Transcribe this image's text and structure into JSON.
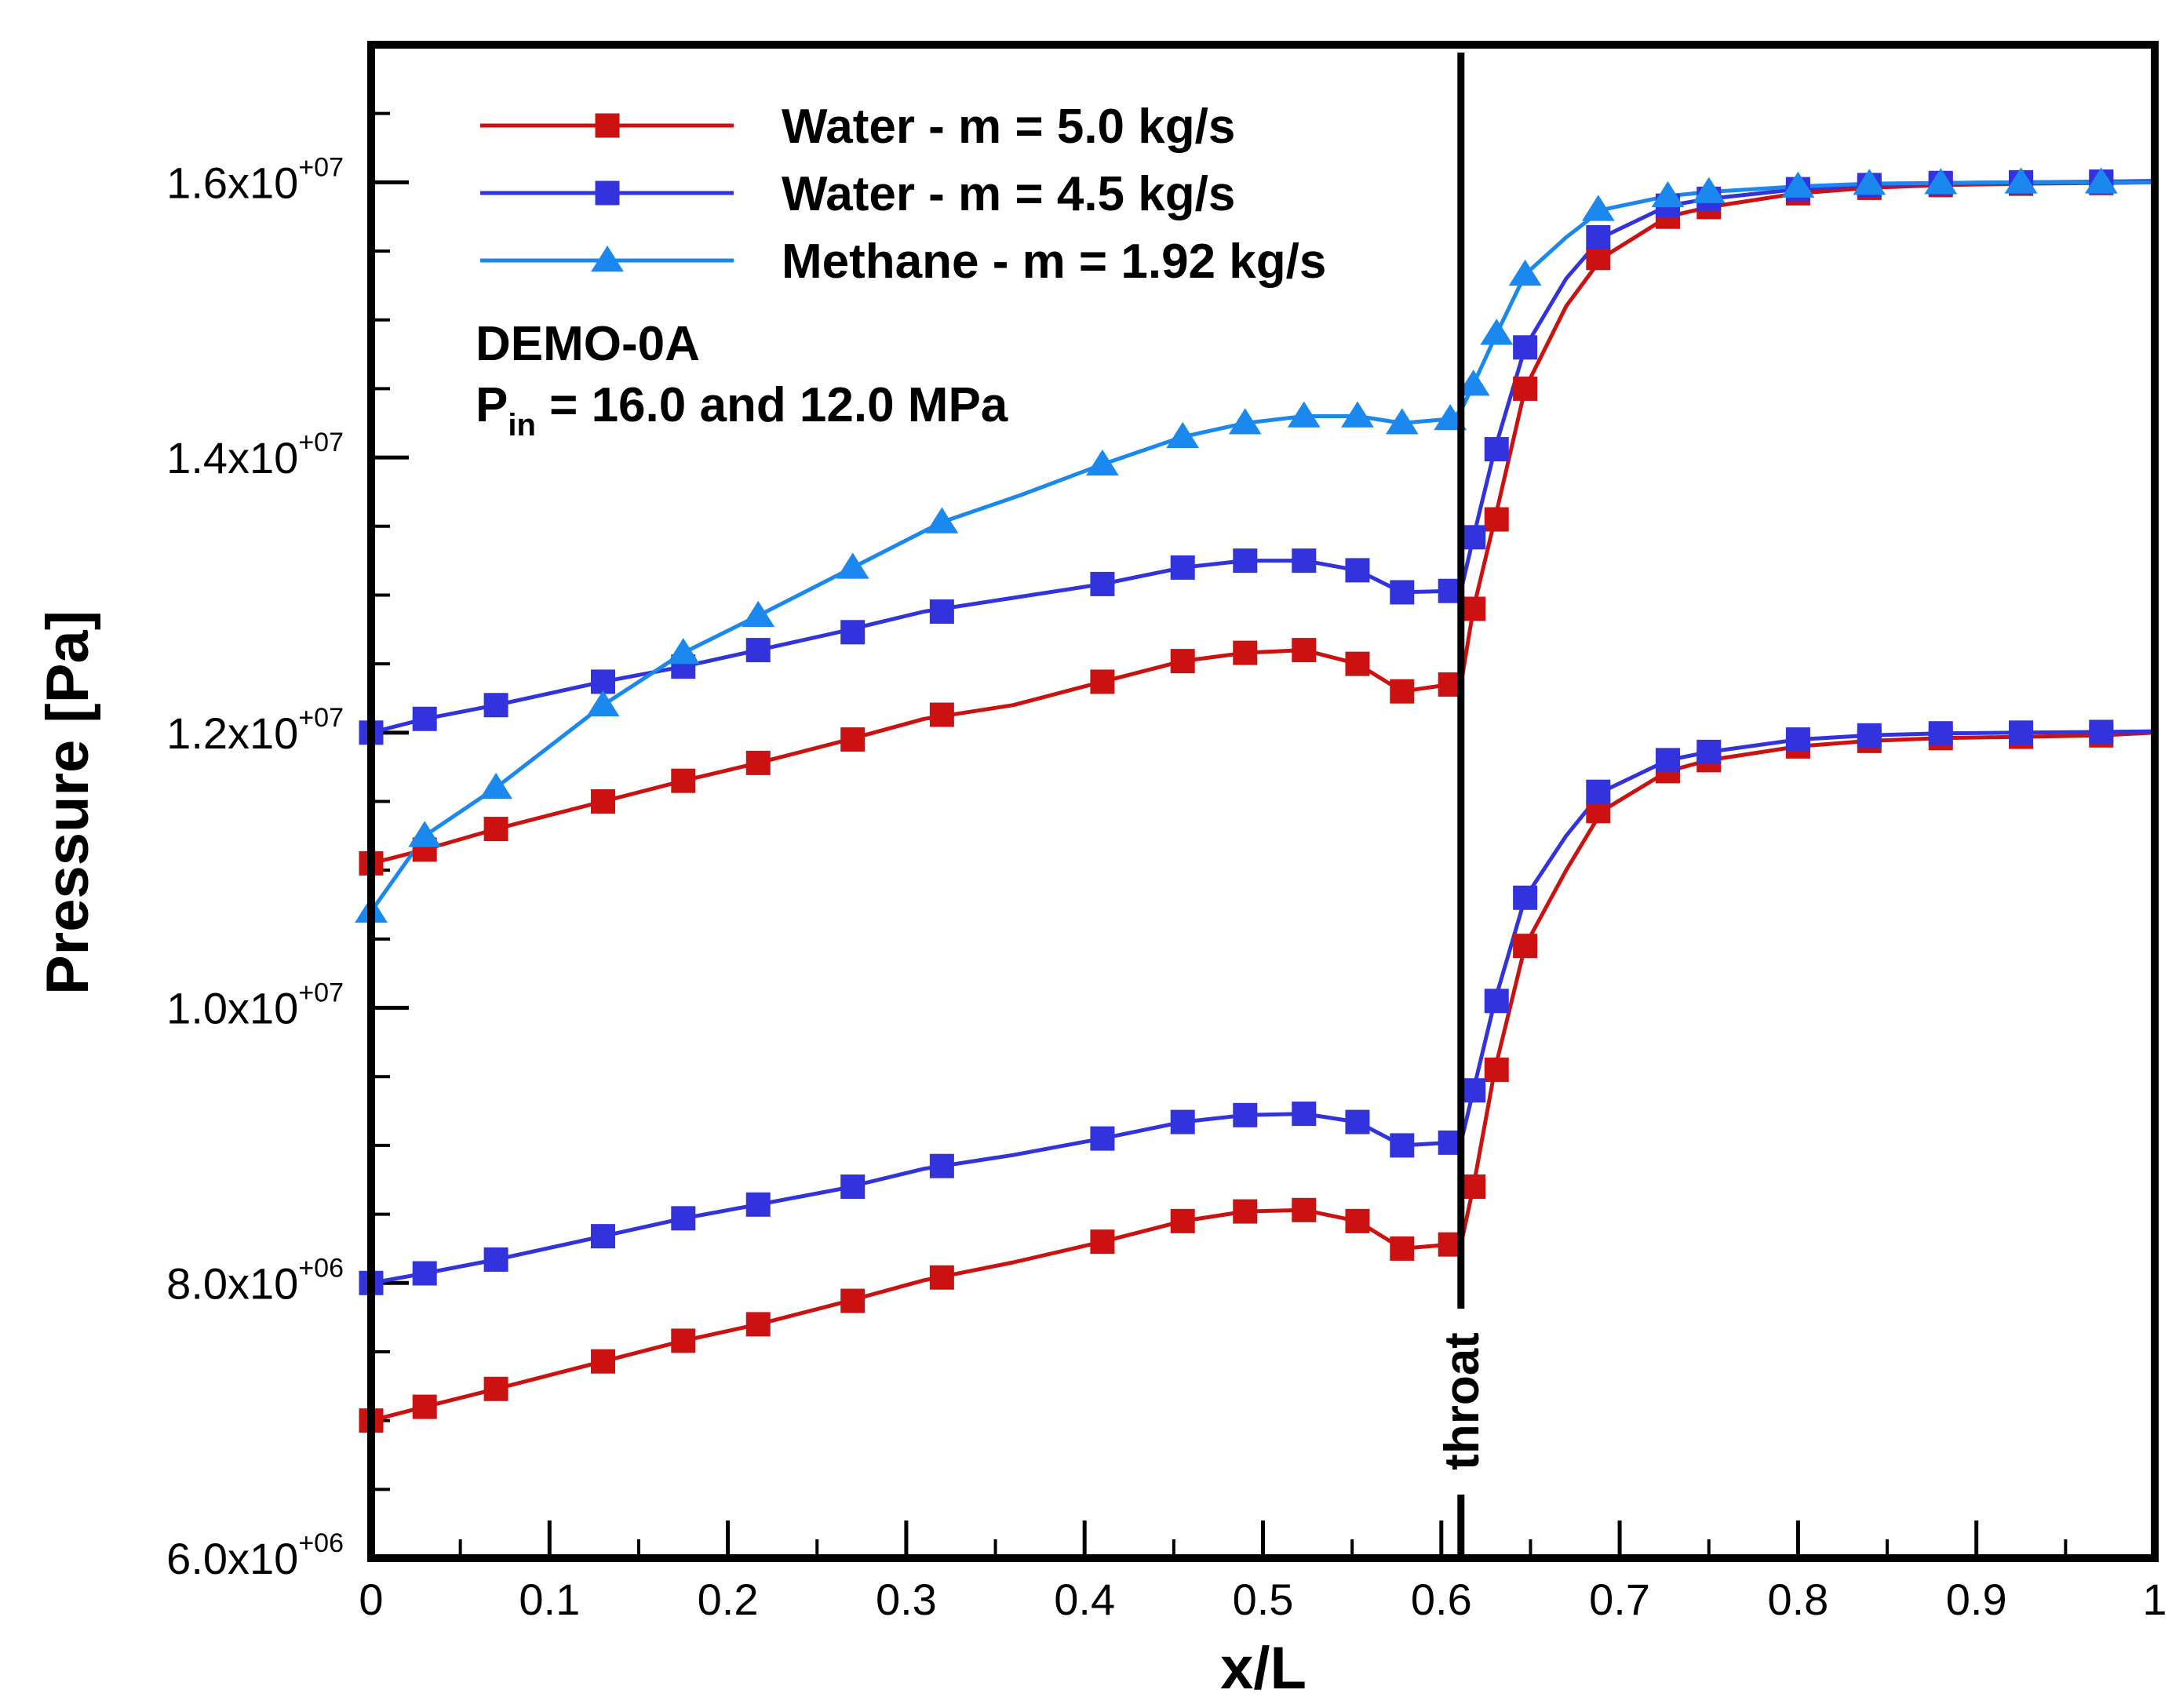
{
  "chart_data": {
    "type": "line",
    "title": "",
    "xlabel": "x/L",
    "ylabel": "Pressure [Pa]",
    "xlim": [
      0,
      1
    ],
    "ylim": [
      6000000,
      17000000
    ],
    "grid": false,
    "legend_position": "top-left",
    "x_ticks": [
      {
        "value": 0,
        "label": "0"
      },
      {
        "value": 0.1,
        "label": "0.1"
      },
      {
        "value": 0.2,
        "label": "0.2"
      },
      {
        "value": 0.3,
        "label": "0.3"
      },
      {
        "value": 0.4,
        "label": "0.4"
      },
      {
        "value": 0.5,
        "label": "0.5"
      },
      {
        "value": 0.6,
        "label": "0.6"
      },
      {
        "value": 0.7,
        "label": "0.7"
      },
      {
        "value": 0.8,
        "label": "0.8"
      },
      {
        "value": 0.9,
        "label": "0.9"
      },
      {
        "value": 1,
        "label": "1"
      }
    ],
    "y_ticks": [
      {
        "value": 6000000,
        "mantissa": "6.0x10",
        "exponent": "+06"
      },
      {
        "value": 8000000,
        "mantissa": "8.0x10",
        "exponent": "+06"
      },
      {
        "value": 10000000,
        "mantissa": "1.0x10",
        "exponent": "+07"
      },
      {
        "value": 12000000,
        "mantissa": "1.2x10",
        "exponent": "+07"
      },
      {
        "value": 14000000,
        "mantissa": "1.4x10",
        "exponent": "+07"
      },
      {
        "value": 16000000,
        "mantissa": "1.6x10",
        "exponent": "+07"
      }
    ],
    "annotations": {
      "case_name": "DEMO-0A",
      "pin_symbol": "P",
      "pin_subscript": "in",
      "pin_text": " = 16.0 and 12.0 MPa",
      "throat_label": "throat",
      "throat_x": 0.611
    },
    "series": [
      {
        "name": "Water - m = 5.0 kg/s",
        "color": "#cc1111",
        "marker": "square",
        "case": "Pin 16.0 MPa",
        "x": [
          0,
          0.03,
          0.07,
          0.13,
          0.175,
          0.217,
          0.262,
          0.31,
          0.36,
          0.41,
          0.455,
          0.49,
          0.523,
          0.553,
          0.578,
          0.605,
          0.611,
          0.618,
          0.63,
          0.647,
          0.67,
          0.69,
          0.727,
          0.75,
          0.8,
          0.84,
          0.88,
          0.925,
          0.97,
          1.0
        ],
        "y": [
          11050000,
          11150000,
          11300000,
          11500000,
          11650000,
          11780000,
          11930000,
          12100000,
          12200000,
          12370000,
          12520000,
          12580000,
          12600000,
          12500000,
          12300000,
          12350000,
          12350000,
          12900000,
          13550000,
          14500000,
          15100000,
          15450000,
          15750000,
          15820000,
          15920000,
          15960000,
          15980000,
          15990000,
          15995000,
          16000000
        ],
        "marker_x": [
          0,
          0.03,
          0.07,
          0.13,
          0.175,
          0.217,
          0.27,
          0.32,
          0.41,
          0.455,
          0.49,
          0.523,
          0.553,
          0.578,
          0.605,
          0.618,
          0.631,
          0.647,
          0.688,
          0.727,
          0.75,
          0.8,
          0.84,
          0.88,
          0.925,
          0.97
        ],
        "marker_y": [
          11050000,
          11150000,
          11300000,
          11500000,
          11650000,
          11780000,
          11950000,
          12130000,
          12370000,
          12520000,
          12580000,
          12600000,
          12500000,
          12300000,
          12350000,
          12900000,
          13550000,
          14500000,
          15450000,
          15750000,
          15820000,
          15920000,
          15960000,
          15980000,
          15990000,
          15995000
        ]
      },
      {
        "name": "Water - m = 4.5 kg/s",
        "color": "#3333dd",
        "marker": "square",
        "case": "Pin 16.0 MPa",
        "x": [
          0,
          0.03,
          0.07,
          0.13,
          0.175,
          0.217,
          0.262,
          0.31,
          0.36,
          0.41,
          0.455,
          0.49,
          0.523,
          0.553,
          0.578,
          0.605,
          0.611,
          0.618,
          0.63,
          0.647,
          0.67,
          0.69,
          0.727,
          0.75,
          0.8,
          0.84,
          0.88,
          0.925,
          0.97,
          1.0
        ],
        "y": [
          12000000,
          12100000,
          12200000,
          12370000,
          12480000,
          12600000,
          12730000,
          12880000,
          12980000,
          13080000,
          13200000,
          13250000,
          13250000,
          13180000,
          13020000,
          13030000,
          13030000,
          13420000,
          14060000,
          14800000,
          15300000,
          15600000,
          15830000,
          15880000,
          15950000,
          15980000,
          15995000,
          16000000,
          16005000,
          16010000
        ],
        "marker_x": [
          0,
          0.03,
          0.07,
          0.13,
          0.175,
          0.217,
          0.27,
          0.32,
          0.41,
          0.455,
          0.49,
          0.523,
          0.553,
          0.578,
          0.605,
          0.618,
          0.631,
          0.647,
          0.688,
          0.727,
          0.75,
          0.8,
          0.84,
          0.88,
          0.925,
          0.97
        ],
        "marker_y": [
          12000000,
          12100000,
          12200000,
          12370000,
          12480000,
          12600000,
          12730000,
          12880000,
          13080000,
          13200000,
          13250000,
          13250000,
          13180000,
          13020000,
          13030000,
          13420000,
          14060000,
          14800000,
          15600000,
          15830000,
          15880000,
          15950000,
          15980000,
          15995000,
          16000000,
          16005000
        ]
      },
      {
        "name": "Methane - m = 1.92 kg/s",
        "color": "#1a88ee",
        "marker": "triangle",
        "case": "Pin 16.0 MPa",
        "x": [
          0,
          0.03,
          0.07,
          0.1,
          0.13,
          0.175,
          0.217,
          0.27,
          0.32,
          0.365,
          0.41,
          0.455,
          0.49,
          0.523,
          0.553,
          0.578,
          0.605,
          0.611,
          0.618,
          0.631,
          0.647,
          0.67,
          0.69,
          0.727,
          0.75,
          0.8,
          0.84,
          0.88,
          0.925,
          0.97,
          1.0
        ],
        "y": [
          10700000,
          11250000,
          11600000,
          11900000,
          12200000,
          12580000,
          12850000,
          13200000,
          13530000,
          13730000,
          13950000,
          14150000,
          14250000,
          14300000,
          14300000,
          14250000,
          14280000,
          14340000,
          14530000,
          14900000,
          15330000,
          15600000,
          15800000,
          15900000,
          15930000,
          15970000,
          15990000,
          15995000,
          16000000,
          16000000,
          16000000
        ],
        "marker_x": [
          0,
          0.03,
          0.07,
          0.13,
          0.175,
          0.217,
          0.27,
          0.32,
          0.41,
          0.455,
          0.49,
          0.523,
          0.553,
          0.578,
          0.605,
          0.618,
          0.631,
          0.647,
          0.688,
          0.727,
          0.75,
          0.8,
          0.84,
          0.88,
          0.925,
          0.97
        ],
        "marker_y": [
          10700000,
          11250000,
          11600000,
          12200000,
          12580000,
          12850000,
          13200000,
          13530000,
          13950000,
          14150000,
          14250000,
          14300000,
          14300000,
          14250000,
          14280000,
          14530000,
          14900000,
          15330000,
          15800000,
          15900000,
          15930000,
          15970000,
          15990000,
          15995000,
          16000000,
          16000000
        ]
      },
      {
        "name": "Water - m = 5.0 kg/s",
        "color": "#cc1111",
        "marker": "square",
        "case": "Pin 12.0 MPa",
        "x": [
          0,
          0.03,
          0.07,
          0.13,
          0.175,
          0.217,
          0.262,
          0.31,
          0.36,
          0.41,
          0.455,
          0.49,
          0.523,
          0.553,
          0.578,
          0.605,
          0.611,
          0.618,
          0.63,
          0.647,
          0.67,
          0.69,
          0.727,
          0.75,
          0.8,
          0.84,
          0.88,
          0.925,
          0.97,
          1.0
        ],
        "y": [
          7000000,
          7100000,
          7230000,
          7430000,
          7580000,
          7700000,
          7850000,
          8020000,
          8150000,
          8300000,
          8450000,
          8520000,
          8530000,
          8450000,
          8250000,
          8280000,
          8280000,
          8700000,
          9550000,
          10450000,
          11000000,
          11430000,
          11720000,
          11800000,
          11900000,
          11940000,
          11960000,
          11970000,
          11980000,
          12000000
        ],
        "marker_x": [
          0,
          0.03,
          0.07,
          0.13,
          0.175,
          0.217,
          0.27,
          0.32,
          0.41,
          0.455,
          0.49,
          0.523,
          0.553,
          0.578,
          0.605,
          0.618,
          0.631,
          0.647,
          0.688,
          0.727,
          0.75,
          0.8,
          0.84,
          0.88,
          0.925,
          0.97
        ],
        "marker_y": [
          7000000,
          7100000,
          7230000,
          7430000,
          7580000,
          7700000,
          7870000,
          8040000,
          8300000,
          8450000,
          8520000,
          8530000,
          8450000,
          8250000,
          8280000,
          8700000,
          9550000,
          10450000,
          11430000,
          11720000,
          11800000,
          11900000,
          11940000,
          11960000,
          11970000,
          11980000
        ]
      },
      {
        "name": "Water - m = 4.5 kg/s",
        "color": "#3333dd",
        "marker": "square",
        "case": "Pin 12.0 MPa",
        "x": [
          0,
          0.03,
          0.07,
          0.13,
          0.175,
          0.217,
          0.262,
          0.31,
          0.36,
          0.41,
          0.455,
          0.49,
          0.523,
          0.553,
          0.578,
          0.605,
          0.611,
          0.618,
          0.63,
          0.647,
          0.67,
          0.69,
          0.727,
          0.75,
          0.8,
          0.84,
          0.88,
          0.925,
          0.97,
          1.0
        ],
        "y": [
          8000000,
          8070000,
          8170000,
          8340000,
          8470000,
          8570000,
          8680000,
          8830000,
          8930000,
          9050000,
          9170000,
          9220000,
          9230000,
          9170000,
          9000000,
          9020000,
          9020000,
          9400000,
          10050000,
          10800000,
          11250000,
          11570000,
          11800000,
          11860000,
          11950000,
          11980000,
          11995000,
          12000000,
          12005000,
          12010000
        ],
        "marker_x": [
          0,
          0.03,
          0.07,
          0.13,
          0.175,
          0.217,
          0.27,
          0.32,
          0.41,
          0.455,
          0.49,
          0.523,
          0.553,
          0.578,
          0.605,
          0.618,
          0.631,
          0.647,
          0.688,
          0.727,
          0.75,
          0.8,
          0.84,
          0.88,
          0.925,
          0.97
        ],
        "marker_y": [
          8000000,
          8070000,
          8170000,
          8340000,
          8470000,
          8570000,
          8700000,
          8850000,
          9050000,
          9170000,
          9220000,
          9230000,
          9170000,
          9000000,
          9020000,
          9400000,
          10050000,
          10800000,
          11570000,
          11800000,
          11860000,
          11950000,
          11980000,
          11995000,
          12000000,
          12005000
        ]
      }
    ],
    "legend": [
      {
        "label": "Water - m = 5.0 kg/s",
        "color": "#cc1111",
        "marker": "square"
      },
      {
        "label": "Water - m = 4.5 kg/s",
        "color": "#3333dd",
        "marker": "square"
      },
      {
        "label": "Methane - m = 1.92 kg/s",
        "color": "#1a88ee",
        "marker": "triangle"
      }
    ]
  }
}
